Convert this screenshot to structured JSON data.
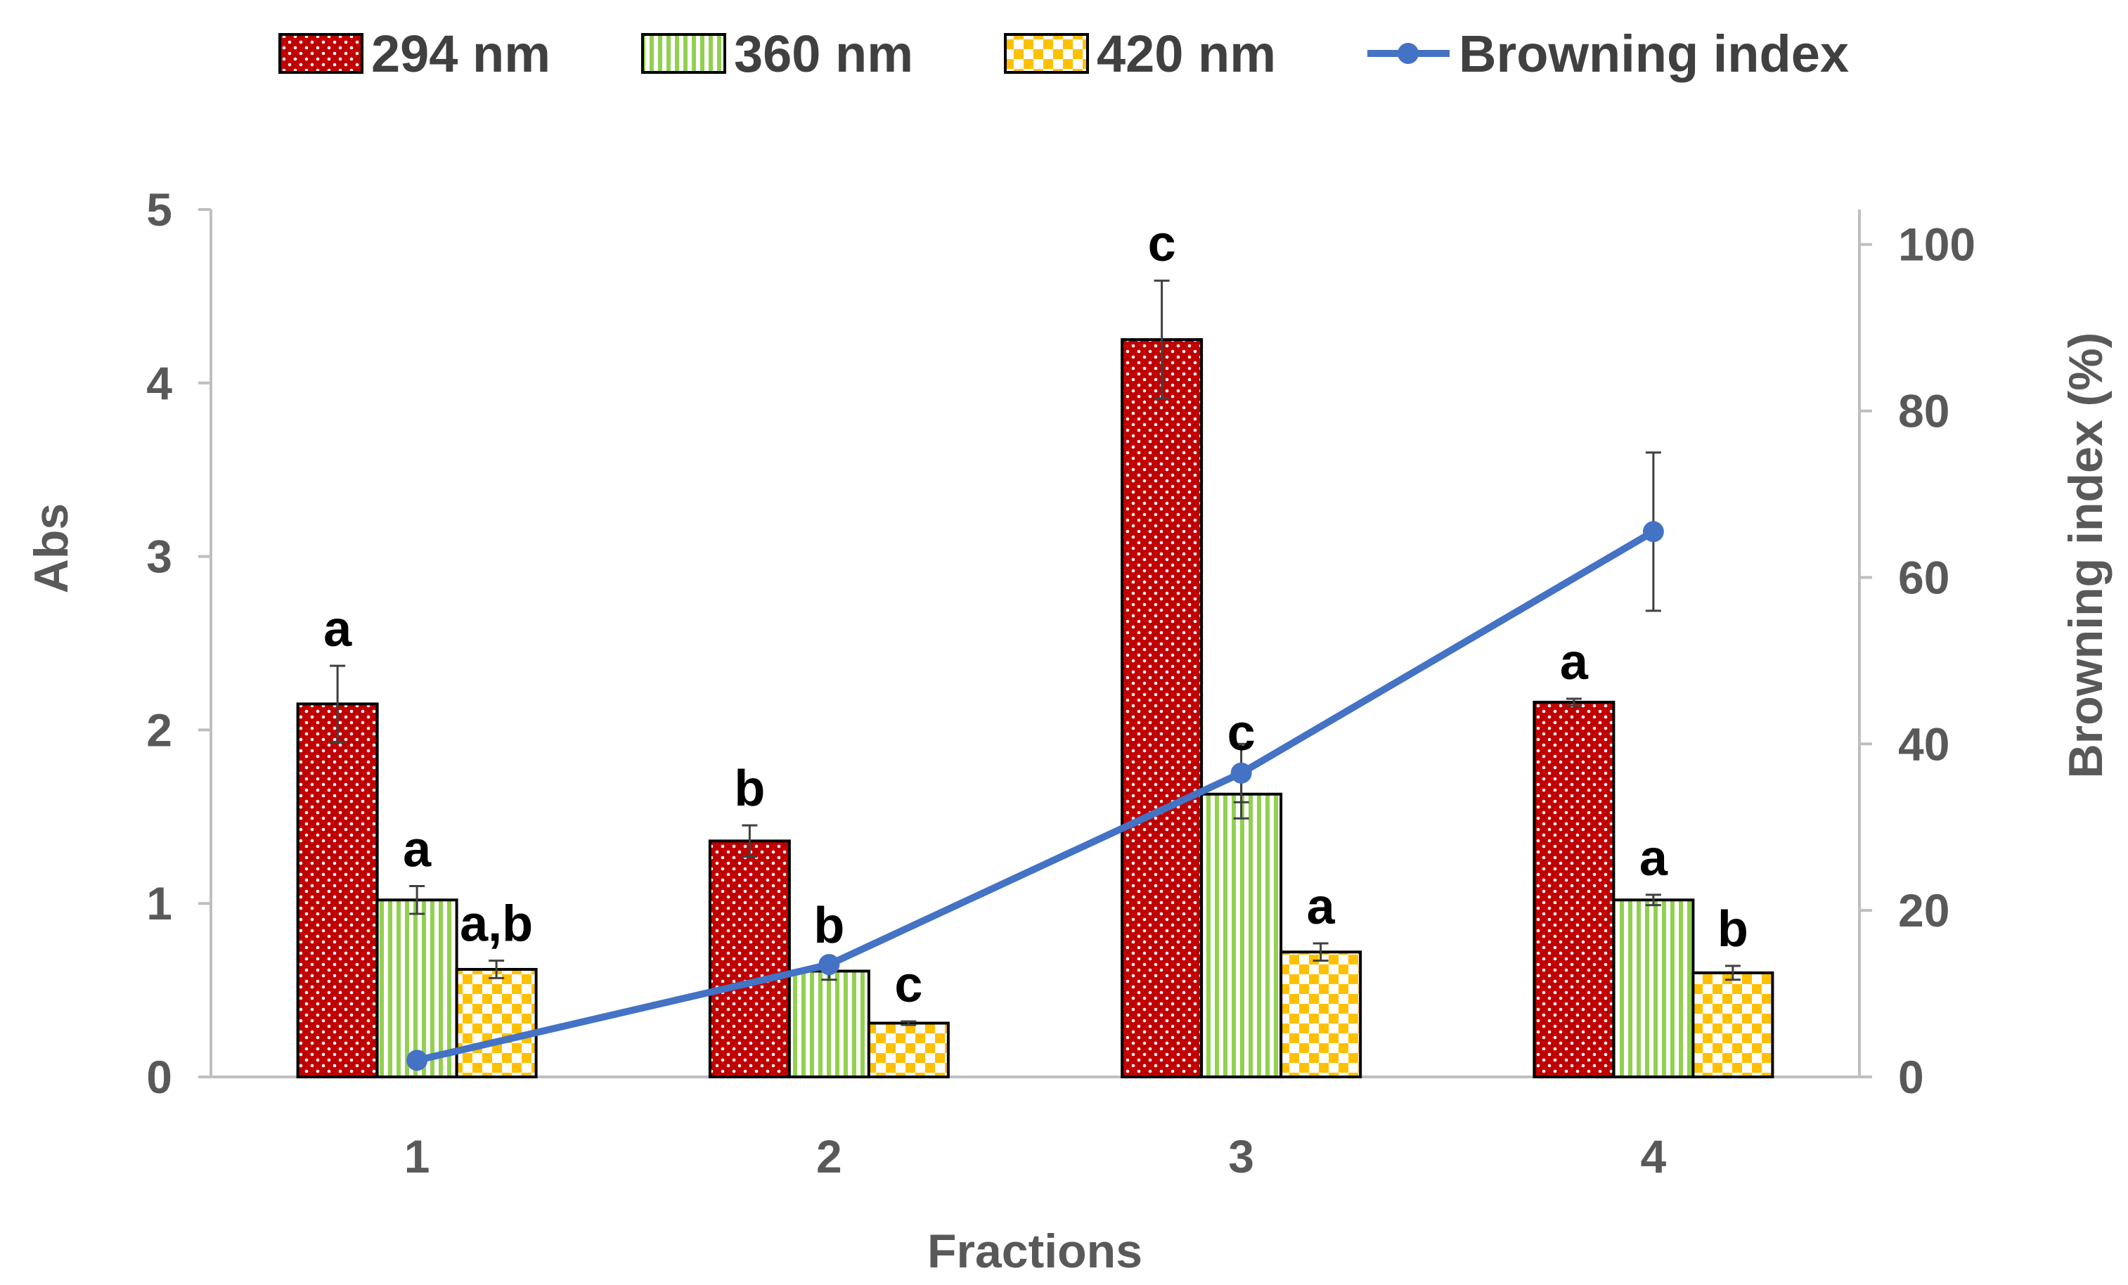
{
  "chart_data": {
    "type": "bar",
    "xlabel": "Fractions",
    "ylabel": "Abs",
    "y2label": "Browning index (%)",
    "categories": [
      "1",
      "2",
      "3",
      "4"
    ],
    "ylim": [
      0,
      5
    ],
    "yticks": [
      "0",
      "1",
      "2",
      "3",
      "4",
      "5"
    ],
    "y2lim": [
      0,
      104.2
    ],
    "y2ticks": [
      "0",
      "20",
      "40",
      "60",
      "80",
      "100"
    ],
    "y2tick_values": [
      0,
      20,
      40,
      60,
      80,
      100
    ],
    "series": [
      {
        "name": "294 nm",
        "color": "#C00000",
        "pattern": "dots",
        "values": [
          2.15,
          1.36,
          4.25,
          2.16
        ],
        "errors": [
          0.22,
          0.09,
          0.34,
          0.02
        ],
        "labels": [
          "a",
          "b",
          "c",
          "a"
        ]
      },
      {
        "name": "360 nm",
        "color": "#92D050",
        "pattern": "vertical-stripes",
        "values": [
          1.02,
          0.61,
          1.63,
          1.02
        ],
        "errors": [
          0.08,
          0.05,
          0.14,
          0.03
        ],
        "labels": [
          "a",
          "b",
          "c",
          "a"
        ]
      },
      {
        "name": "420 nm",
        "color": "#FFC000",
        "pattern": "checker",
        "values": [
          0.62,
          0.31,
          0.72,
          0.6
        ],
        "errors": [
          0.05,
          0.01,
          0.05,
          0.04
        ],
        "labels": [
          "a,b",
          "c",
          "a",
          "b"
        ]
      }
    ],
    "line_series": {
      "name": "Browning index",
      "color": "#4472C4",
      "axis": "right",
      "values": [
        2,
        13.5,
        36.5,
        65.5
      ],
      "errors": [
        0,
        0,
        3.5,
        9.5
      ]
    },
    "legend": [
      "294 nm",
      "360 nm",
      "420 nm",
      "Browning index"
    ],
    "legend_position": "top"
  }
}
